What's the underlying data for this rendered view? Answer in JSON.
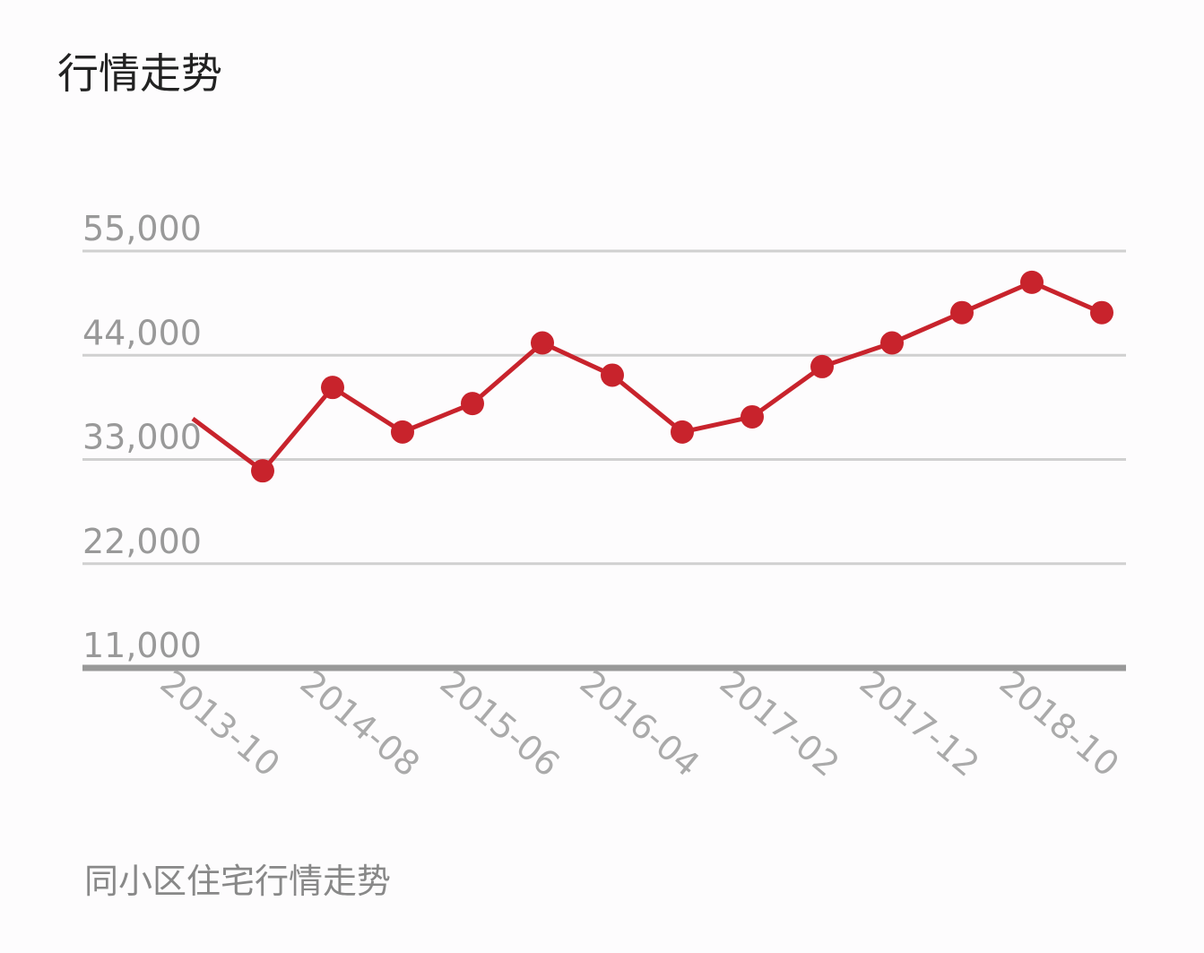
{
  "chart_data": {
    "type": "line",
    "title": "行情走势",
    "footer": "同小区住宅行情走势",
    "categories": [
      null,
      "2013-10",
      null,
      "2014-08",
      null,
      "2015-06",
      null,
      "2016-04",
      null,
      "2017-02",
      null,
      "2017-12",
      null,
      "2018-10"
    ],
    "series": [
      {
        "color": "#c8232c",
        "values": [
          37300,
          31800,
          40600,
          35900,
          38900,
          45300,
          41900,
          35900,
          37500,
          42800,
          45300,
          48500,
          51700,
          48500
        ]
      }
    ],
    "ylim": [
      11000,
      55000
    ],
    "yticks": [
      {
        "value": 11000,
        "label": "11,000"
      },
      {
        "value": 22000,
        "label": "22,000"
      },
      {
        "value": 33000,
        "label": "33,000"
      },
      {
        "value": 44000,
        "label": "44,000"
      },
      {
        "value": 55000,
        "label": "55,000"
      }
    ],
    "grid": true
  }
}
